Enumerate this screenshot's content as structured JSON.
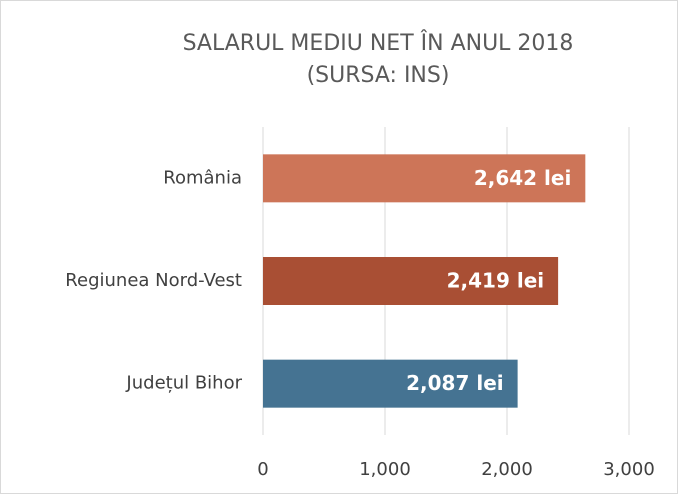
{
  "chart_data": {
    "type": "bar",
    "orientation": "horizontal",
    "title": "SALARUL MEDIU NET ÎN ANUL 2018",
    "subtitle": "(SURSA: INS)",
    "categories": [
      "România",
      "Regiunea Nord-Vest",
      "Județul Bihor"
    ],
    "values": [
      2642,
      2419,
      2087
    ],
    "value_labels": [
      "2,642 lei",
      "2,419 lei",
      "2,087 lei"
    ],
    "colors": [
      "#cd7558",
      "#a94f34",
      "#457392"
    ],
    "xlim": [
      0,
      3000
    ],
    "xticks": [
      0,
      {
        "value": 1000,
        "label": "1,000"
      },
      {
        "value": 2000,
        "label": "2,000"
      },
      {
        "value": 3000,
        "label": "3,000"
      }
    ],
    "grid": true
  }
}
